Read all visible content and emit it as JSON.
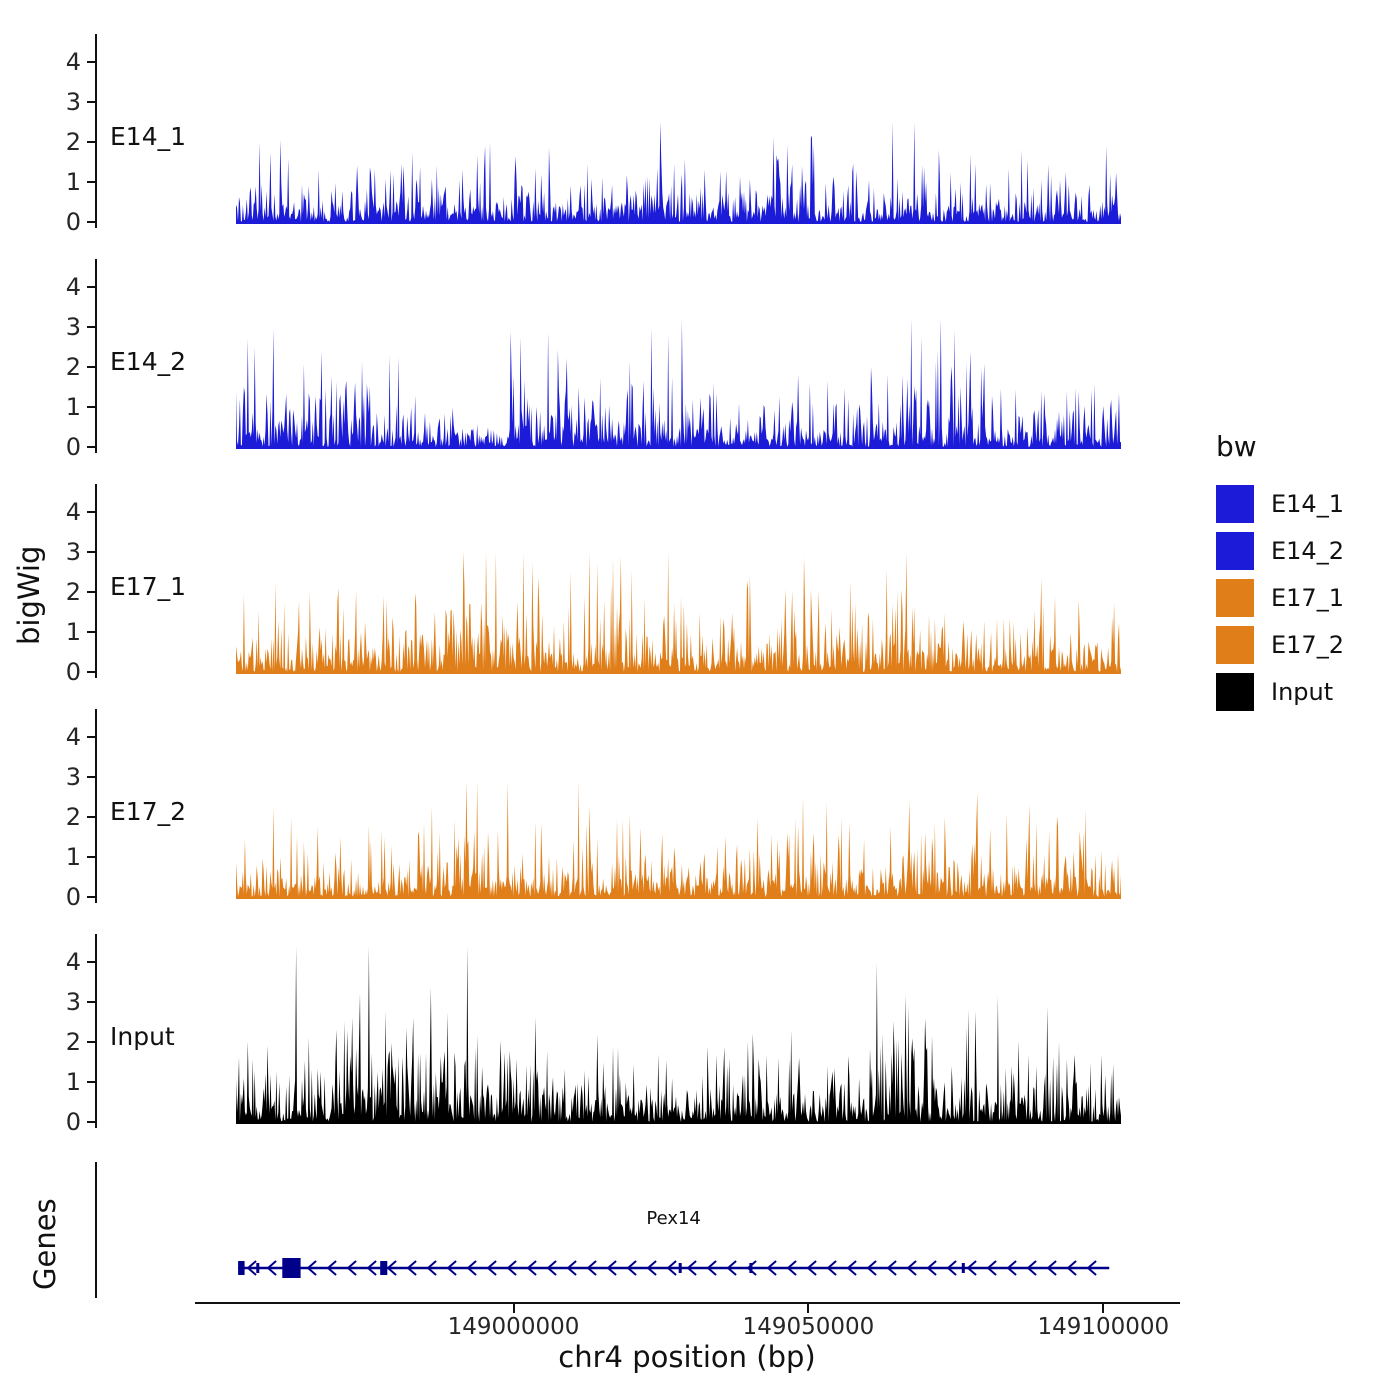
{
  "figure": {
    "ylabel": "bigWig",
    "genes_label": "Genes",
    "xlabel": "chr4 position (bp)"
  },
  "legend": {
    "title": "bw",
    "items": [
      {
        "label": "E14_1",
        "color": "#1c1cd8"
      },
      {
        "label": "E14_2",
        "color": "#1c1cd8"
      },
      {
        "label": "E17_1",
        "color": "#e07f1a"
      },
      {
        "label": "E17_2",
        "color": "#e07f1a"
      },
      {
        "label": "Input",
        "color": "#000000"
      }
    ]
  },
  "chart_data": {
    "type": "area",
    "title": "",
    "xlabel": "chr4 position (bp)",
    "ylabel": "bigWig",
    "x_domain": [
      148946000,
      149113000
    ],
    "data_range": [
      148953000,
      149103000
    ],
    "x_ticks": [
      {
        "value": 149000000,
        "label": "149000000"
      },
      {
        "value": 149050000,
        "label": "149050000"
      },
      {
        "value": 149100000,
        "label": "149100000"
      }
    ],
    "y_ticks": [
      0,
      1,
      2,
      3,
      4
    ],
    "ylim": [
      0,
      4.6
    ],
    "grid": false,
    "legend_position": "right",
    "tracks": [
      {
        "name": "E14_1",
        "color": "#1c1cd8",
        "seed": 101,
        "base": 0.3,
        "spike": 1.7,
        "spike_prob": 0.04,
        "max": 2.5
      },
      {
        "name": "E14_2",
        "color": "#1c1cd8",
        "seed": 202,
        "base": 0.42,
        "spike": 2.1,
        "spike_prob": 0.05,
        "max": 3.2
      },
      {
        "name": "E17_1",
        "color": "#e07f1a",
        "seed": 303,
        "base": 0.4,
        "spike": 1.8,
        "spike_prob": 0.05,
        "max": 3.0
      },
      {
        "name": "E17_2",
        "color": "#e07f1a",
        "seed": 404,
        "base": 0.38,
        "spike": 1.8,
        "spike_prob": 0.05,
        "max": 2.9
      },
      {
        "name": "Input",
        "color": "#000000",
        "seed": 505,
        "base": 0.52,
        "spike": 2.0,
        "spike_prob": 0.04,
        "max": 4.4
      }
    ],
    "gene_track": {
      "name": "Pex14",
      "strand": "-",
      "chrom": "chr4",
      "start": 148953300,
      "end": 149101000,
      "color": "#00008b",
      "exons": [
        {
          "start": 148953300,
          "end": 148954400
        },
        {
          "start": 148956400,
          "end": 148956900
        },
        {
          "start": 148960800,
          "end": 148963900
        },
        {
          "start": 148977400,
          "end": 148978600
        },
        {
          "start": 149028000,
          "end": 149028400
        },
        {
          "start": 149040000,
          "end": 149040400
        },
        {
          "start": 149076000,
          "end": 149076400
        }
      ]
    }
  }
}
